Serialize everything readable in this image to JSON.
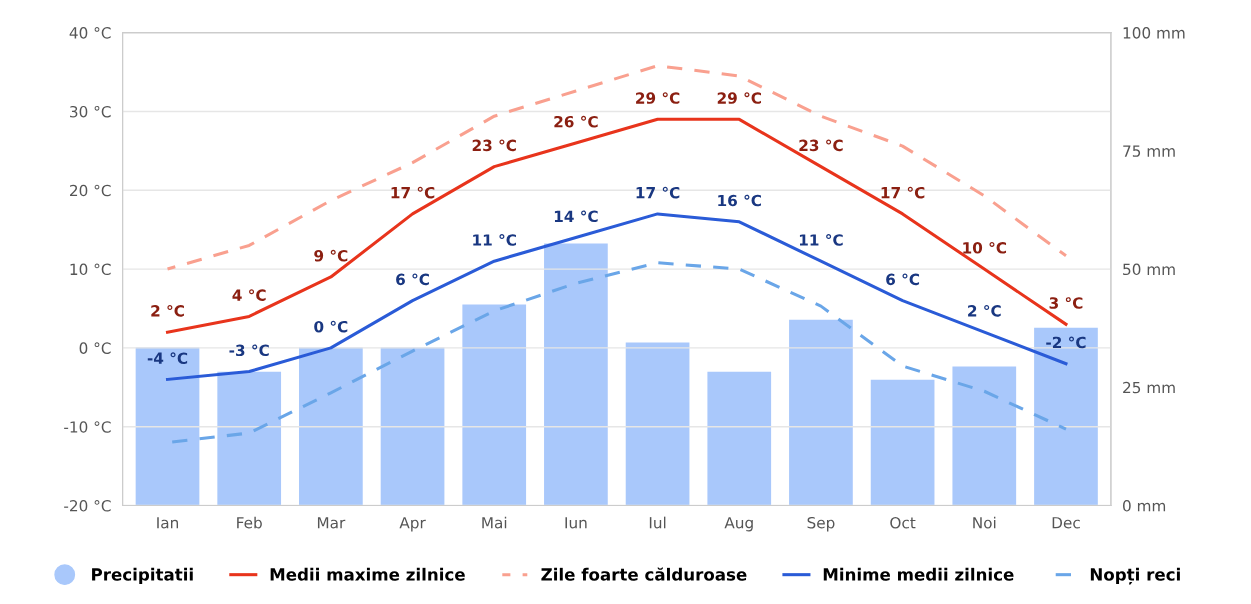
{
  "chart_data": {
    "type": "line",
    "categories": [
      "Ian",
      "Feb",
      "Mar",
      "Apr",
      "Mai",
      "Iun",
      "Iul",
      "Aug",
      "Sep",
      "Oct",
      "Noi",
      "Dec"
    ],
    "series": [
      {
        "name": "Precipitatii",
        "type": "bar",
        "axis": "y2",
        "color": "#a9c8fb",
        "values": [
          33.4,
          28.3,
          33.4,
          33.4,
          42.5,
          55.4,
          34.5,
          28.3,
          39.3,
          26.6,
          29.4,
          37.6
        ]
      },
      {
        "name": "Medii maxime zilnice",
        "color": "#e8341c",
        "line_style": "solid",
        "values": [
          2,
          4,
          9,
          17,
          23,
          26,
          29,
          29,
          23,
          17,
          10,
          3
        ],
        "value_labels": [
          "2 °C",
          "4 °C",
          "9 °C",
          "17 °C",
          "23 °C",
          "26 °C",
          "29 °C",
          "29 °C",
          "23 °C",
          "17 °C",
          "10 °C",
          "3 °C"
        ]
      },
      {
        "name": "Zile foarte călduroase",
        "color": "#f9a08f",
        "line_style": "dashed",
        "values": [
          10,
          13,
          18.7,
          23.5,
          29.4,
          32.6,
          35.8,
          34.5,
          29.4,
          25.6,
          19.3,
          11.7
        ]
      },
      {
        "name": "Minime medii zilnice",
        "color": "#2a5bd7",
        "line_style": "solid",
        "values": [
          -4,
          -3,
          0,
          6,
          11,
          14,
          17,
          16,
          11,
          6,
          2,
          -2
        ],
        "value_labels": [
          "-4 °C",
          "-3 °C",
          "0 °C",
          "6 °C",
          "11 °C",
          "14 °C",
          "17 °C",
          "16 °C",
          "11 °C",
          "6 °C",
          "2 °C",
          "-2 °C"
        ]
      },
      {
        "name": "Nopți reci",
        "color": "#6aa6e8",
        "line_style": "dashed",
        "values": [
          -12,
          -10.8,
          -5.7,
          -0.4,
          4.7,
          8.2,
          10.8,
          10,
          5.3,
          -2.3,
          -5.5,
          -10.3
        ]
      }
    ],
    "ylim": [
      -20,
      40
    ],
    "yticks": [
      {
        "value": -20,
        "label": "-20 °C"
      },
      {
        "value": -10,
        "label": "-10 °C"
      },
      {
        "value": 0,
        "label": "0 °C"
      },
      {
        "value": 10,
        "label": "10 °C"
      },
      {
        "value": 20,
        "label": "20 °C"
      },
      {
        "value": 30,
        "label": "30 °C"
      },
      {
        "value": 40,
        "label": "40 °C"
      }
    ],
    "y2lim": [
      0,
      100
    ],
    "y2ticks": [
      {
        "value": 0,
        "label": "0 mm"
      },
      {
        "value": 25,
        "label": "25 mm"
      },
      {
        "value": 50,
        "label": "50 mm"
      },
      {
        "value": 75,
        "label": "75 mm"
      },
      {
        "value": 100,
        "label": "100 mm"
      }
    ],
    "grid": "y",
    "legend": "bottom"
  }
}
